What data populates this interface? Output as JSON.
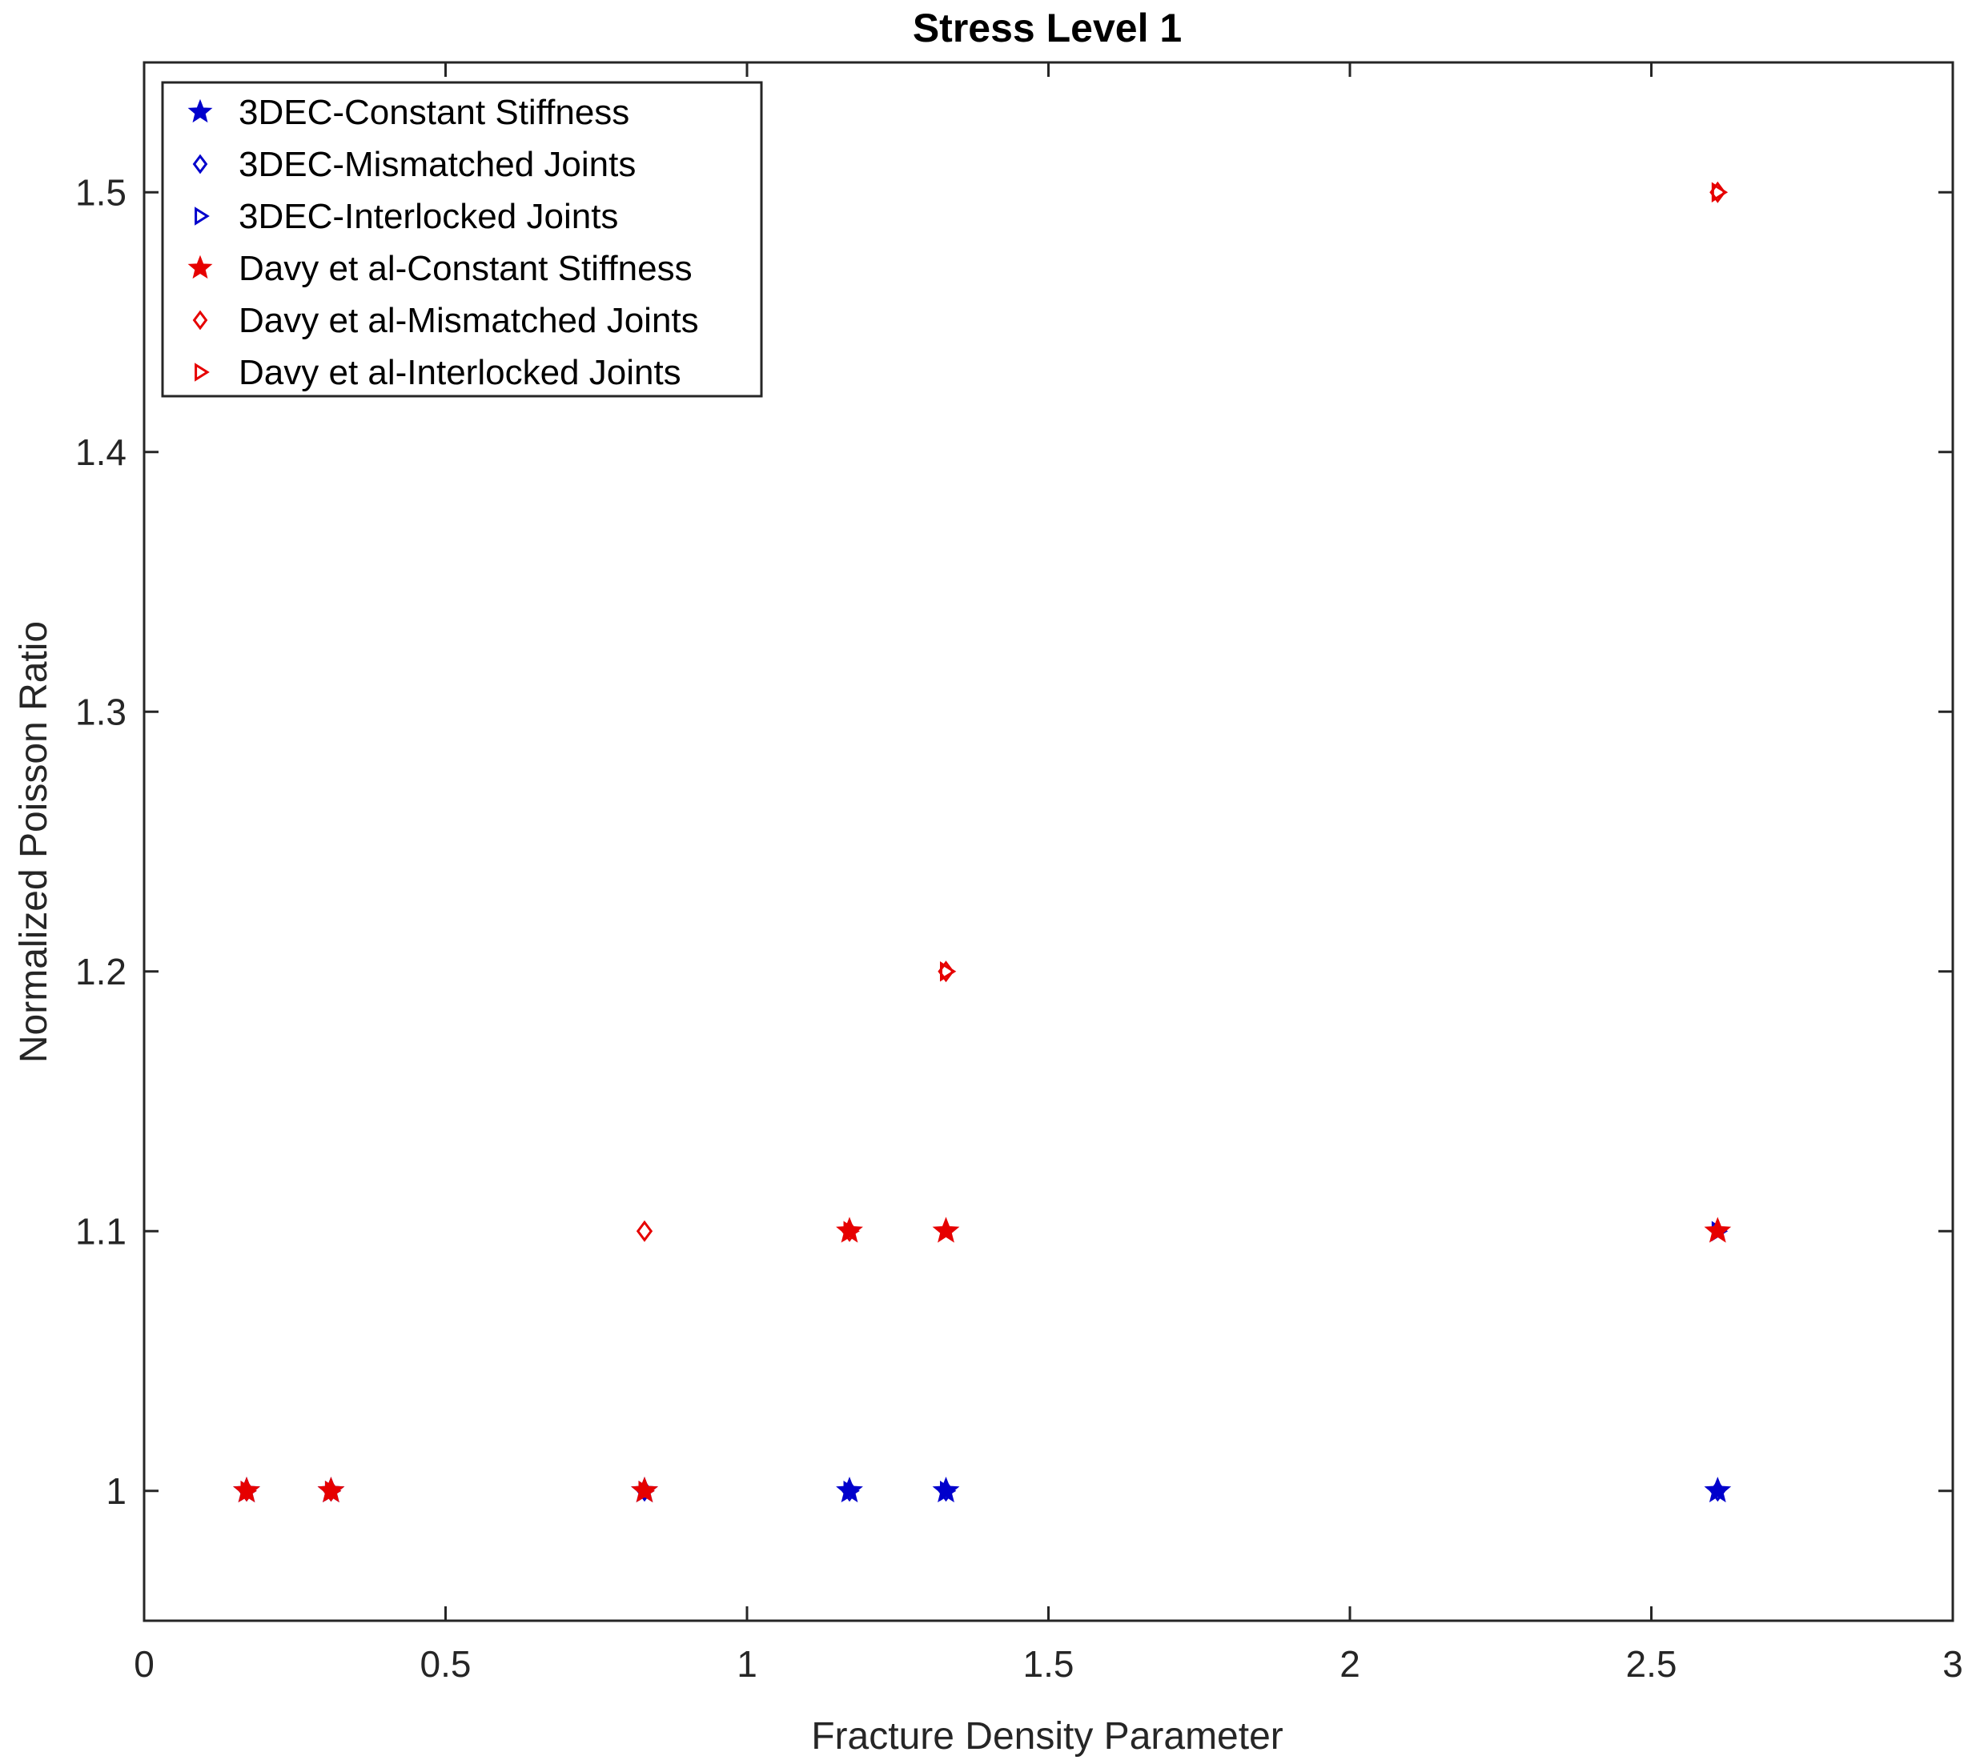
{
  "chart_data": {
    "type": "scatter",
    "title": "Stress Level 1",
    "xlabel": "Fracture Density Parameter",
    "ylabel": "Normalized Poisson Ratio",
    "xlim": [
      0,
      3
    ],
    "ylim": [
      0.95,
      1.55
    ],
    "xticks": [
      0,
      0.5,
      1,
      1.5,
      2,
      2.5,
      3
    ],
    "xtick_labels": [
      "0",
      "0.5",
      "1",
      "1.5",
      "2",
      "2.5",
      "3"
    ],
    "yticks": [
      1,
      1.1,
      1.2,
      1.3,
      1.4,
      1.5
    ],
    "ytick_labels": [
      "1",
      "1.1",
      "1.2",
      "1.3",
      "1.4",
      "1.5"
    ],
    "grid": false,
    "legend_position": "top-left",
    "series": [
      {
        "name": "3DEC-Constant Stiffness",
        "marker": "star",
        "color": "#0000CC",
        "x": [
          0.17,
          0.31,
          0.83,
          1.17,
          1.33,
          2.61
        ],
        "y": [
          1.0,
          1.0,
          1.0,
          1.0,
          1.0,
          1.0
        ]
      },
      {
        "name": "3DEC-Mismatched Joints",
        "marker": "diamond",
        "color": "#0000CC",
        "x": [
          0.17,
          0.31,
          0.83,
          1.17,
          1.33,
          2.61
        ],
        "y": [
          1.0,
          1.0,
          1.0,
          1.0,
          1.0,
          1.0
        ]
      },
      {
        "name": "3DEC-Interlocked Joints",
        "marker": "triangle-right",
        "color": "#0000CC",
        "x": [
          0.17,
          0.31,
          0.83,
          1.17,
          1.33,
          2.61
        ],
        "y": [
          1.0,
          1.0,
          1.0,
          1.0,
          1.0,
          1.1
        ]
      },
      {
        "name": "Davy et al-Constant Stiffness",
        "marker": "star",
        "color": "#E60000",
        "x": [
          0.17,
          0.31,
          0.83,
          1.17,
          1.33,
          2.61
        ],
        "y": [
          1.0,
          1.0,
          1.0,
          1.1,
          1.1,
          1.1
        ]
      },
      {
        "name": "Davy et al-Mismatched Joints",
        "marker": "diamond",
        "color": "#E60000",
        "x": [
          0.17,
          0.31,
          0.83,
          1.17,
          1.33,
          2.61
        ],
        "y": [
          1.0,
          1.0,
          1.1,
          1.1,
          1.2,
          1.5
        ]
      },
      {
        "name": "Davy et al-Interlocked Joints",
        "marker": "triangle-right",
        "color": "#E60000",
        "x": [
          0.17,
          0.31,
          0.83,
          1.17,
          1.33,
          2.61
        ],
        "y": [
          1.0,
          1.0,
          1.0,
          1.1,
          1.2,
          1.5
        ]
      }
    ]
  }
}
